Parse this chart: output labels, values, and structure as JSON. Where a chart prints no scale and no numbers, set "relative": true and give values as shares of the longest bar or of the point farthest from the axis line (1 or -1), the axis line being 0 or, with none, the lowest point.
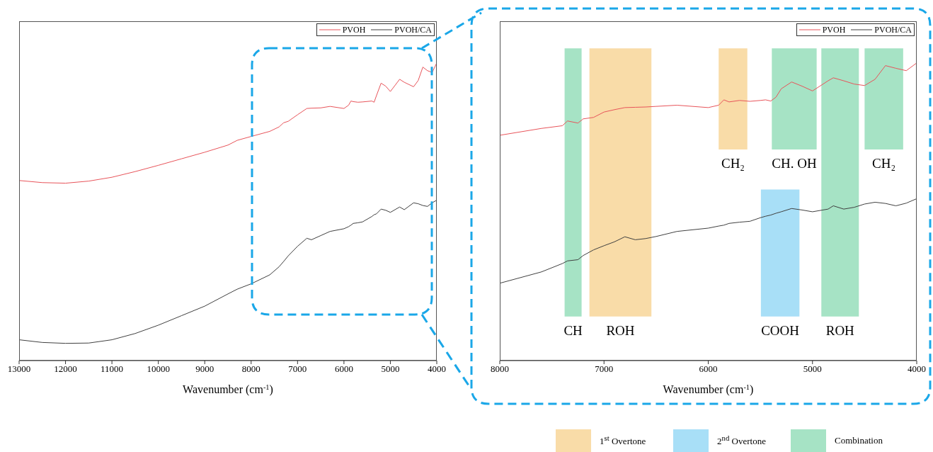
{
  "chart_data": [
    {
      "type": "line",
      "xlabel": "Wavenumber (cm$^{-1}$)",
      "relative": true,
      "xlim": [
        13000,
        4000
      ],
      "xticks": [
        13000,
        12000,
        11000,
        10000,
        9000,
        8000,
        7000,
        6000,
        5000,
        4000
      ],
      "legend": "top right",
      "x": [
        13000,
        12500,
        12000,
        11500,
        11000,
        10500,
        10000,
        9500,
        9000,
        8500,
        8300,
        8000,
        7600,
        7400,
        7300,
        7200,
        7000,
        6800,
        6700,
        6500,
        6300,
        6000,
        5900,
        5850,
        5800,
        5700,
        5600,
        5400,
        5350,
        5300,
        5200,
        5100,
        5000,
        4800,
        4700,
        4500,
        4400,
        4300,
        4200,
        4100,
        4000
      ],
      "series": [
        {
          "name": "PVOH",
          "color": "#e8545a",
          "values": [
            0.605,
            0.598,
            0.596,
            0.603,
            0.616,
            0.635,
            0.656,
            0.678,
            0.7,
            0.724,
            0.74,
            0.753,
            0.77,
            0.785,
            0.799,
            0.804,
            0.826,
            0.847,
            0.848,
            0.849,
            0.854,
            0.847,
            0.858,
            0.872,
            0.87,
            0.868,
            0.869,
            0.872,
            0.868,
            0.89,
            0.932,
            0.922,
            0.904,
            0.945,
            0.935,
            0.92,
            0.941,
            0.986,
            0.974,
            0.968,
            1
          ]
        },
        {
          "name": "PVOH/CA",
          "color": "#404040",
          "values": [
            0.07,
            0.061,
            0.058,
            0.059,
            0.07,
            0.091,
            0.119,
            0.151,
            0.183,
            0.224,
            0.24,
            0.258,
            0.288,
            0.315,
            0.333,
            0.352,
            0.384,
            0.411,
            0.406,
            0.42,
            0.434,
            0.443,
            0.45,
            0.455,
            0.461,
            0.463,
            0.466,
            0.484,
            0.49,
            0.493,
            0.509,
            0.505,
            0.498,
            0.516,
            0.507,
            0.53,
            0.527,
            0.521,
            0.518,
            0.53,
            0.539
          ]
        }
      ]
    },
    {
      "type": "line",
      "xlabel": "Wavenumber (cm$^{-1}$)",
      "relative": true,
      "xlim": [
        8000,
        4000
      ],
      "xticks": [
        8000,
        7000,
        6000,
        5000,
        4000
      ],
      "legend": "top right",
      "x": [
        8000,
        7600,
        7400,
        7350,
        7250,
        7200,
        7100,
        7000,
        6900,
        6800,
        6700,
        6600,
        6500,
        6300,
        6000,
        5900,
        5850,
        5800,
        5700,
        5600,
        5500,
        5450,
        5400,
        5350,
        5300,
        5200,
        5100,
        5000,
        4850,
        4800,
        4700,
        4600,
        4500,
        4400,
        4300,
        4200,
        4100,
        4000
      ],
      "series": [
        {
          "name": "PVOH",
          "color": "#e8545a",
          "values": [
            0.757,
            0.78,
            0.789,
            0.805,
            0.798,
            0.812,
            0.817,
            0.835,
            0.843,
            0.85,
            0.851,
            0.852,
            0.854,
            0.858,
            0.85,
            0.858,
            0.876,
            0.869,
            0.874,
            0.871,
            0.874,
            0.876,
            0.872,
            0.885,
            0.913,
            0.936,
            0.922,
            0.906,
            0.94,
            0.95,
            0.94,
            0.929,
            0.924,
            0.945,
            0.991,
            0.982,
            0.974,
            1
          ]
        },
        {
          "name": "PVOH/CA",
          "color": "#404040",
          "values": [
            0.26,
            0.298,
            0.326,
            0.335,
            0.339,
            0.353,
            0.372,
            0.386,
            0.399,
            0.416,
            0.406,
            0.41,
            0.417,
            0.434,
            0.445,
            0.452,
            0.455,
            0.461,
            0.465,
            0.468,
            0.48,
            0.485,
            0.489,
            0.495,
            0.5,
            0.511,
            0.506,
            0.5,
            0.509,
            0.52,
            0.509,
            0.515,
            0.526,
            0.532,
            0.528,
            0.52,
            0.529,
            0.544
          ]
        }
      ],
      "bands": [
        {
          "axis": "x",
          "from": 7140,
          "to": 6545,
          "label": "ROH",
          "color": "#f9dca8"
        },
        {
          "axis": "x",
          "from": 5495,
          "to": 5125,
          "label": "COOH",
          "color": "#a8dff7"
        },
        {
          "axis": "x",
          "from": 7378,
          "to": 7215,
          "label": "CH",
          "color": "#a6e3c5"
        },
        {
          "axis": "x",
          "from": 5900,
          "to": 5625,
          "label": "CH₂",
          "color": "#f9dca8"
        },
        {
          "axis": "x",
          "from": 5390,
          "to": 4960,
          "label": "CH. OH",
          "color": "#a6e3c5"
        },
        {
          "axis": "x",
          "from": 4915,
          "to": 4555,
          "label": "ROH",
          "color": "#a6e3c5"
        },
        {
          "axis": "x",
          "from": 4500,
          "to": 4130,
          "label": "CH₂",
          "color": "#a6e3c5"
        }
      ],
      "annotations": [
        "1$^{st}$ Overtone",
        "2$^{nd}$ Overtone",
        "Combination"
      ]
    }
  ]
}
